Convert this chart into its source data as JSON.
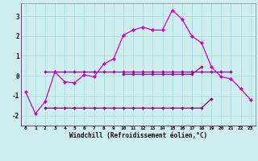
{
  "title": "",
  "xlabel": "Windchill (Refroidissement éolien,°C)",
  "background_color": "#ceeef0",
  "grid_color": "#aadddd",
  "line_color_main": "#cc00cc",
  "line_color_flat_upper": "#990099",
  "line_color_flat_lower": "#880088",
  "x": [
    0,
    1,
    2,
    3,
    4,
    5,
    6,
    7,
    8,
    9,
    10,
    11,
    12,
    13,
    14,
    15,
    16,
    17,
    18,
    19,
    20,
    21,
    22,
    23
  ],
  "y_curve": [
    -0.8,
    -1.9,
    -1.3,
    0.2,
    -0.3,
    -0.35,
    0.05,
    -0.05,
    0.6,
    0.85,
    2.05,
    2.3,
    2.45,
    2.3,
    2.3,
    3.3,
    2.85,
    2.0,
    1.65,
    0.45,
    -0.05,
    -0.15,
    -0.65,
    -1.2
  ],
  "y_upper1_x": [
    2,
    3,
    4,
    5,
    6,
    7,
    8,
    9,
    10,
    11,
    12,
    13,
    14,
    15,
    16,
    17,
    18,
    19,
    20,
    21
  ],
  "y_upper1_y": [
    0.2,
    0.2,
    0.2,
    0.2,
    0.2,
    0.2,
    0.2,
    0.2,
    0.2,
    0.2,
    0.2,
    0.2,
    0.2,
    0.2,
    0.2,
    0.2,
    0.2,
    0.2,
    0.2,
    0.2
  ],
  "y_upper2_x": [
    10,
    11,
    12,
    13,
    14,
    15,
    16,
    17,
    18
  ],
  "y_upper2_y": [
    0.08,
    0.08,
    0.08,
    0.08,
    0.08,
    0.08,
    0.08,
    0.08,
    0.45
  ],
  "y_lower_x": [
    2,
    3,
    4,
    5,
    6,
    7,
    8,
    9,
    10,
    11,
    12,
    13,
    14,
    15,
    16,
    17,
    18,
    19
  ],
  "y_lower_y": [
    -1.62,
    -1.62,
    -1.62,
    -1.62,
    -1.62,
    -1.62,
    -1.62,
    -1.62,
    -1.62,
    -1.62,
    -1.62,
    -1.62,
    -1.62,
    -1.62,
    -1.62,
    -1.62,
    -1.62,
    -1.15
  ],
  "xlim": [
    -0.5,
    23.5
  ],
  "ylim": [
    -2.5,
    3.65
  ],
  "yticks": [
    -2,
    -1,
    0,
    1,
    2,
    3
  ],
  "xticks": [
    0,
    1,
    2,
    3,
    4,
    5,
    6,
    7,
    8,
    9,
    10,
    11,
    12,
    13,
    14,
    15,
    16,
    17,
    18,
    19,
    20,
    21,
    22,
    23
  ]
}
